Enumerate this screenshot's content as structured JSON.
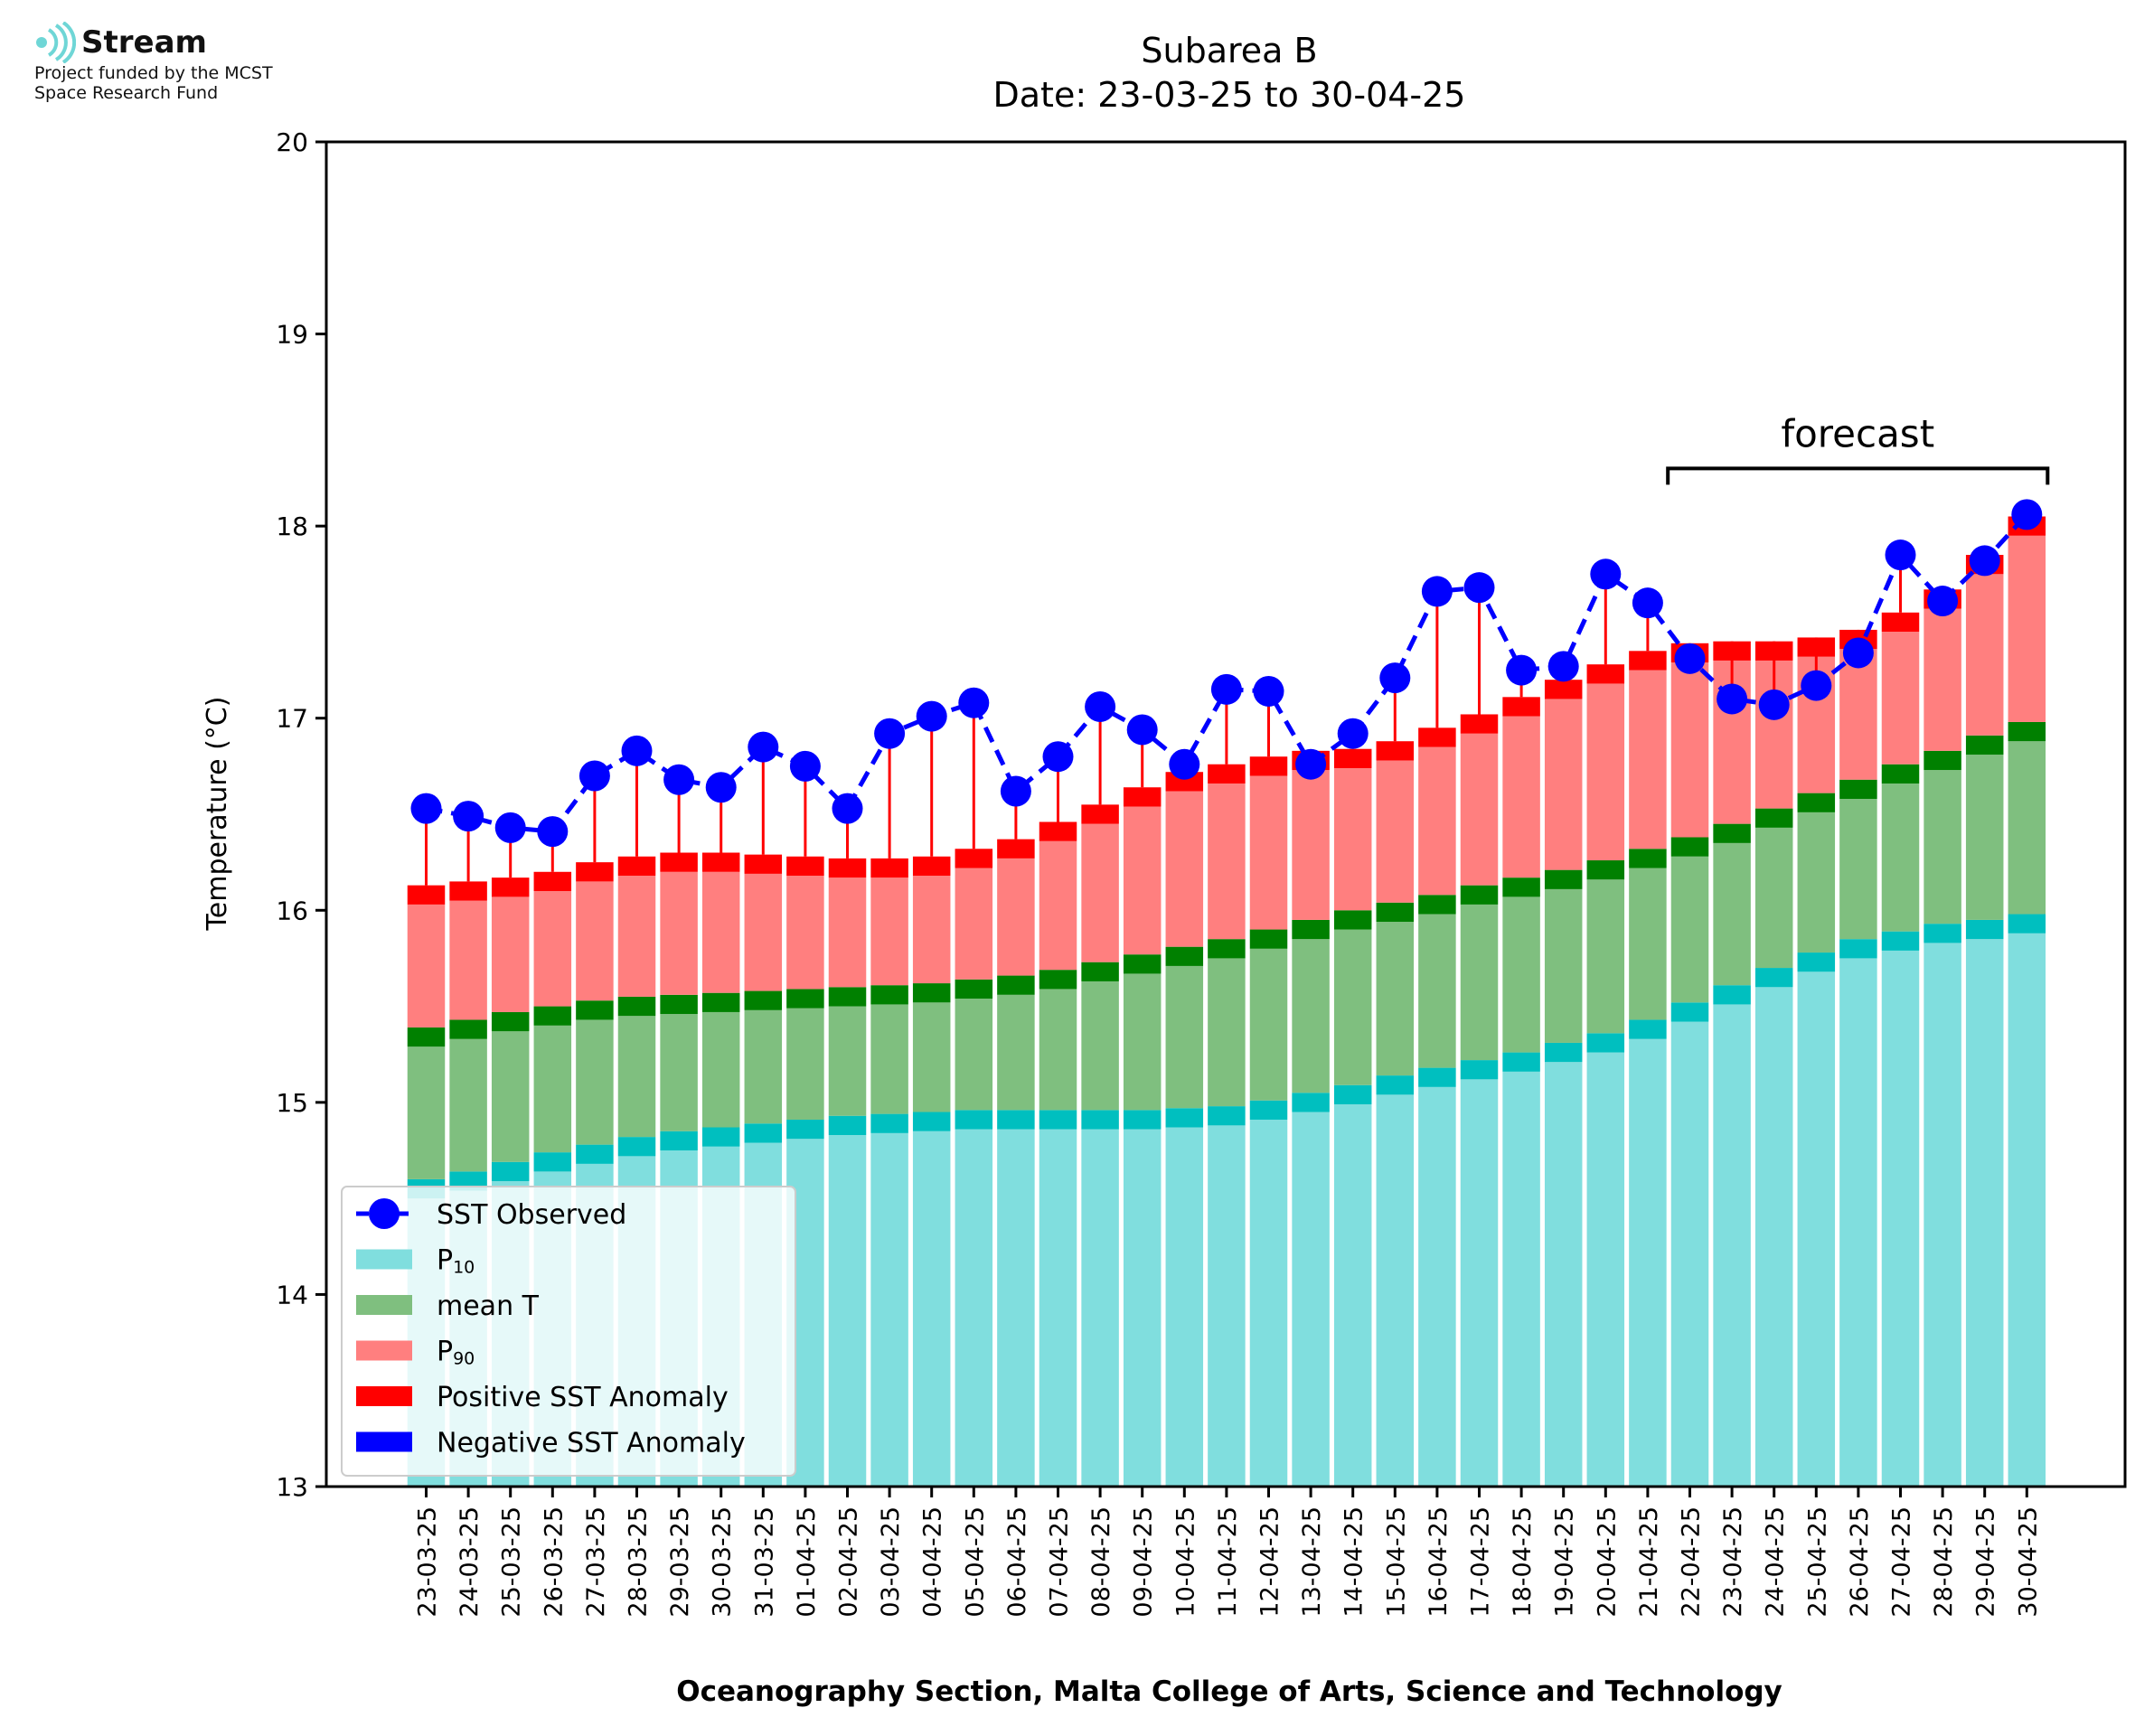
{
  "logo": {
    "name": "Stream",
    "funding_line1": "Project funded by the MCST",
    "funding_line2": "Space Research Fund"
  },
  "chart_data": {
    "type": "bar",
    "title_line1": "Subarea B",
    "title_line2": "Date: 23-03-25 to 30-04-25",
    "xlabel": "Oceanography Section, Malta College of Arts, Science and Technology",
    "ylabel": "Temperature (°C)",
    "ylim": [
      13,
      20
    ],
    "yticks": [
      "13",
      "14",
      "15",
      "16",
      "17",
      "18",
      "19",
      "20"
    ],
    "forecast_label": "forecast",
    "forecast_range": [
      "22-04-25",
      "30-04-25"
    ],
    "categories": [
      "23-03-25",
      "24-03-25",
      "25-03-25",
      "26-03-25",
      "27-03-25",
      "28-03-25",
      "29-03-25",
      "30-03-25",
      "31-03-25",
      "01-04-25",
      "02-04-25",
      "03-04-25",
      "04-04-25",
      "05-04-25",
      "06-04-25",
      "07-04-25",
      "08-04-25",
      "09-04-25",
      "10-04-25",
      "11-04-25",
      "12-04-25",
      "13-04-25",
      "14-04-25",
      "15-04-25",
      "16-04-25",
      "17-04-25",
      "18-04-25",
      "19-04-25",
      "20-04-25",
      "21-04-25",
      "22-04-25",
      "23-04-25",
      "24-04-25",
      "25-04-25",
      "26-04-25",
      "27-04-25",
      "28-04-25",
      "29-04-25",
      "30-04-25"
    ],
    "series": [
      {
        "name": "P10",
        "values": [
          14.6,
          14.64,
          14.69,
          14.74,
          14.78,
          14.82,
          14.85,
          14.87,
          14.89,
          14.91,
          14.93,
          14.94,
          14.95,
          14.96,
          14.96,
          14.96,
          14.96,
          14.96,
          14.97,
          14.98,
          15.01,
          15.05,
          15.09,
          15.14,
          15.18,
          15.22,
          15.26,
          15.31,
          15.36,
          15.43,
          15.52,
          15.61,
          15.7,
          15.78,
          15.85,
          15.89,
          15.93,
          15.95,
          15.98
        ]
      },
      {
        "name": "mean T",
        "values": [
          15.39,
          15.43,
          15.47,
          15.5,
          15.53,
          15.55,
          15.56,
          15.57,
          15.58,
          15.59,
          15.6,
          15.61,
          15.62,
          15.64,
          15.66,
          15.69,
          15.73,
          15.77,
          15.81,
          15.85,
          15.9,
          15.95,
          16.0,
          16.04,
          16.08,
          16.13,
          16.17,
          16.21,
          16.26,
          16.32,
          16.38,
          16.45,
          16.53,
          16.61,
          16.68,
          16.76,
          16.83,
          16.91,
          16.98
        ]
      },
      {
        "name": "P90",
        "values": [
          16.13,
          16.15,
          16.17,
          16.2,
          16.25,
          16.28,
          16.3,
          16.3,
          16.29,
          16.28,
          16.27,
          16.27,
          16.28,
          16.32,
          16.37,
          16.46,
          16.55,
          16.64,
          16.72,
          16.76,
          16.8,
          16.83,
          16.84,
          16.88,
          16.95,
          17.02,
          17.11,
          17.2,
          17.28,
          17.35,
          17.39,
          17.4,
          17.4,
          17.42,
          17.46,
          17.55,
          17.67,
          17.85,
          18.05
        ]
      },
      {
        "name": "SST Observed",
        "values": [
          16.53,
          16.49,
          16.43,
          16.41,
          16.7,
          16.83,
          16.68,
          16.64,
          16.85,
          16.75,
          16.53,
          16.92,
          17.01,
          17.08,
          16.62,
          16.8,
          17.06,
          16.94,
          16.76,
          17.15,
          17.14,
          16.76,
          16.92,
          17.21,
          17.66,
          17.68,
          17.25,
          17.27,
          17.75,
          17.6,
          17.31,
          17.1,
          17.07,
          17.17,
          17.34,
          17.85,
          17.61,
          17.82,
          18.06
        ]
      }
    ],
    "legend": {
      "placement": "lower-left",
      "entries": [
        {
          "label": "SST Observed",
          "kind": "line",
          "color": "#0000ff"
        },
        {
          "label": "P",
          "sub": "10",
          "kind": "patch",
          "color": "#80dede"
        },
        {
          "label": "mean T",
          "kind": "patch",
          "color": "#7fbf7f"
        },
        {
          "label": "P",
          "sub": "90",
          "kind": "patch",
          "color": "#ff7f7f"
        },
        {
          "label": "Positive SST Anomaly",
          "kind": "patch",
          "color": "#ff0000"
        },
        {
          "label": "Negative SST Anomaly",
          "kind": "patch",
          "color": "#0000ff"
        }
      ]
    },
    "colors": {
      "p10_fill": "#80dede",
      "p10_edge": "#00bfbf",
      "mean_fill": "#7fbf7f",
      "mean_edge": "#008000",
      "p90_fill": "#ff7f7f",
      "p90_edge": "#ff0000",
      "observed": "#0000ff",
      "anomaly_pos": "#ff0000",
      "anomaly_neg": "#0000ff",
      "logo_accent": "#6fd6d6"
    }
  }
}
